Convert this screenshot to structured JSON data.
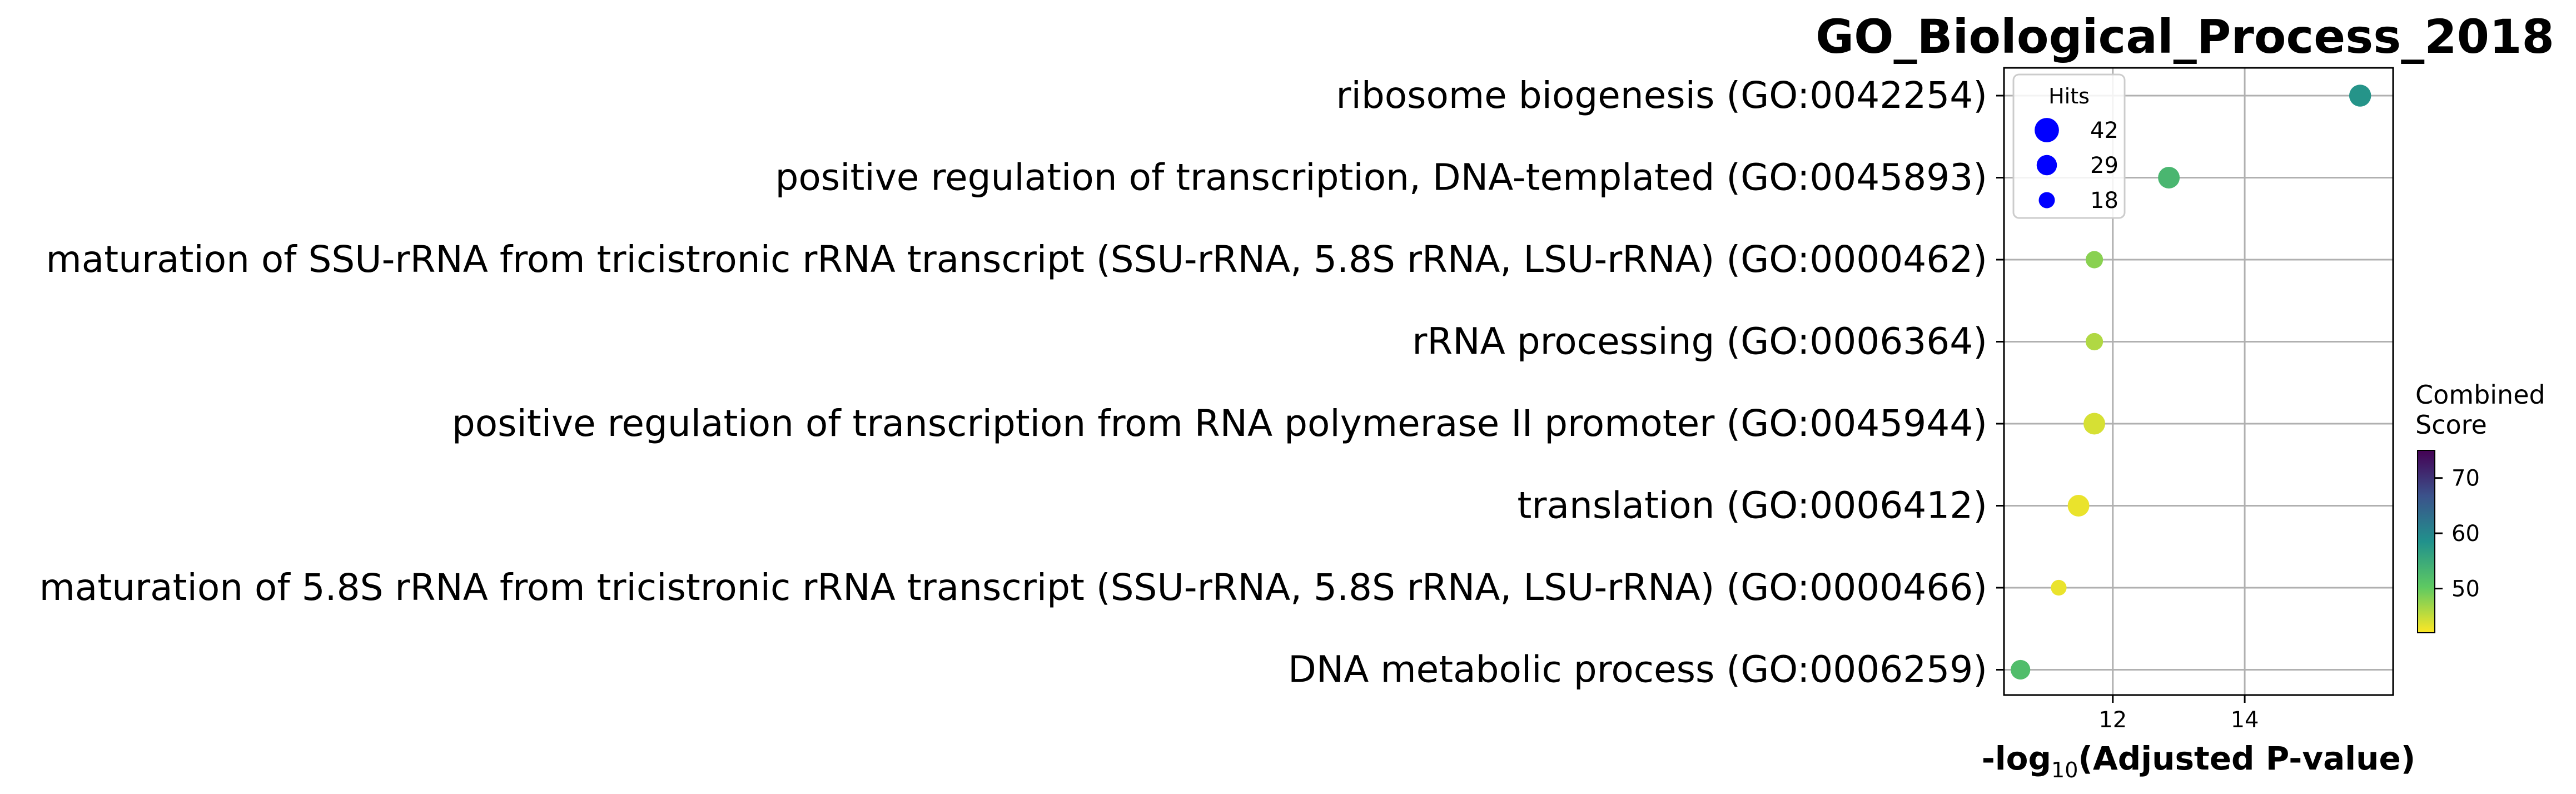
{
  "chart_data": {
    "type": "scatter",
    "title": "GO_Biological_Process_2018",
    "xlabel_main": "-log",
    "xlabel_sub": "10",
    "xlabel_rest": "(Adjusted P-value)",
    "ylabel": "",
    "xlim": [
      10.35,
      16.25
    ],
    "x_ticks": [
      12,
      14
    ],
    "x_tick_labels": [
      "12",
      "14"
    ],
    "grid": true,
    "categories": [
      "ribosome biogenesis (GO:0042254)",
      "positive regulation of transcription, DNA-templated (GO:0045893)",
      "maturation of SSU-rRNA from tricistronic rRNA transcript (SSU-rRNA, 5.8S rRNA, LSU-rRNA) (GO:0000462)",
      "rRNA processing (GO:0006364)",
      "positive regulation of transcription from RNA polymerase II promoter (GO:0045944)",
      "translation (GO:0006412)",
      "maturation of 5.8S rRNA from tricistronic rRNA transcript (SSU-rRNA, 5.8S rRNA, LSU-rRNA) (GO:0000466)",
      "DNA metabolic process (GO:0006259)"
    ],
    "x": [
      15.75,
      12.85,
      11.72,
      11.72,
      11.72,
      11.48,
      11.18,
      10.6
    ],
    "hits": [
      34,
      33,
      21,
      21,
      33,
      33,
      17,
      27
    ],
    "combined_score": [
      58,
      53,
      48,
      46,
      44,
      43,
      43,
      52
    ],
    "legend": {
      "title": "Hits",
      "placement": "top-left",
      "entries": [
        {
          "label": "42",
          "hits": 42
        },
        {
          "label": "29",
          "hits": 29
        },
        {
          "label": "18",
          "hits": 18
        }
      ],
      "color": "#0000ff"
    },
    "colorbar": {
      "title_line1": "Combined",
      "title_line2": "Score",
      "colormap": "viridis_r",
      "range": [
        42,
        75
      ],
      "ticks": [
        50,
        60,
        70
      ],
      "tick_labels": [
        "50",
        "60",
        "70"
      ]
    }
  }
}
